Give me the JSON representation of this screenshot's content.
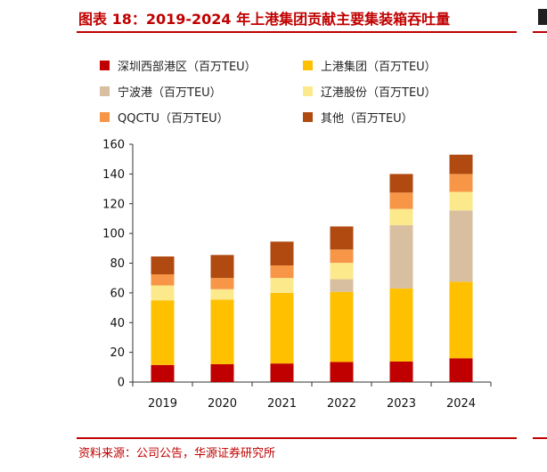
{
  "header": {
    "title": "图表 18：2019-2024 年上港集团贡献主要集装箱吞吐量"
  },
  "footer": {
    "source": "资料来源：公司公告，华源证券研究所"
  },
  "chart_data": {
    "type": "bar",
    "stacked": true,
    "categories": [
      "2019",
      "2020",
      "2021",
      "2022",
      "2023",
      "2024"
    ],
    "series": [
      {
        "name": "深圳西部港区（百万TEU）",
        "color": "#c00000",
        "values": [
          11.5,
          12,
          12.5,
          13.5,
          13.8,
          16
        ]
      },
      {
        "name": "上港集团（百万TEU）",
        "color": "#ffc000",
        "values": [
          43.5,
          43.5,
          47.5,
          47.2,
          49.2,
          51.5
        ]
      },
      {
        "name": "宁波港（百万TEU）",
        "color": "#d8bfa0",
        "values": [
          0,
          0,
          0,
          8.5,
          42.5,
          48
        ]
      },
      {
        "name": "辽港股份（百万TEU）",
        "color": "#fce98c",
        "values": [
          10,
          7,
          10,
          11,
          11,
          12.5
        ]
      },
      {
        "name": "QQCTU（百万TEU）",
        "color": "#f79646",
        "values": [
          7.5,
          7.5,
          8.5,
          9,
          11,
          12
        ]
      },
      {
        "name": "其他（百万TEU）",
        "color": "#b04a10",
        "values": [
          12,
          15.5,
          16,
          15.5,
          12.5,
          13
        ]
      }
    ],
    "ylim": [
      0,
      160
    ],
    "yticks": [
      "0",
      "20",
      "40",
      "60",
      "80",
      "100",
      "120",
      "140",
      "160"
    ],
    "grid": false,
    "legend_position": "top"
  }
}
